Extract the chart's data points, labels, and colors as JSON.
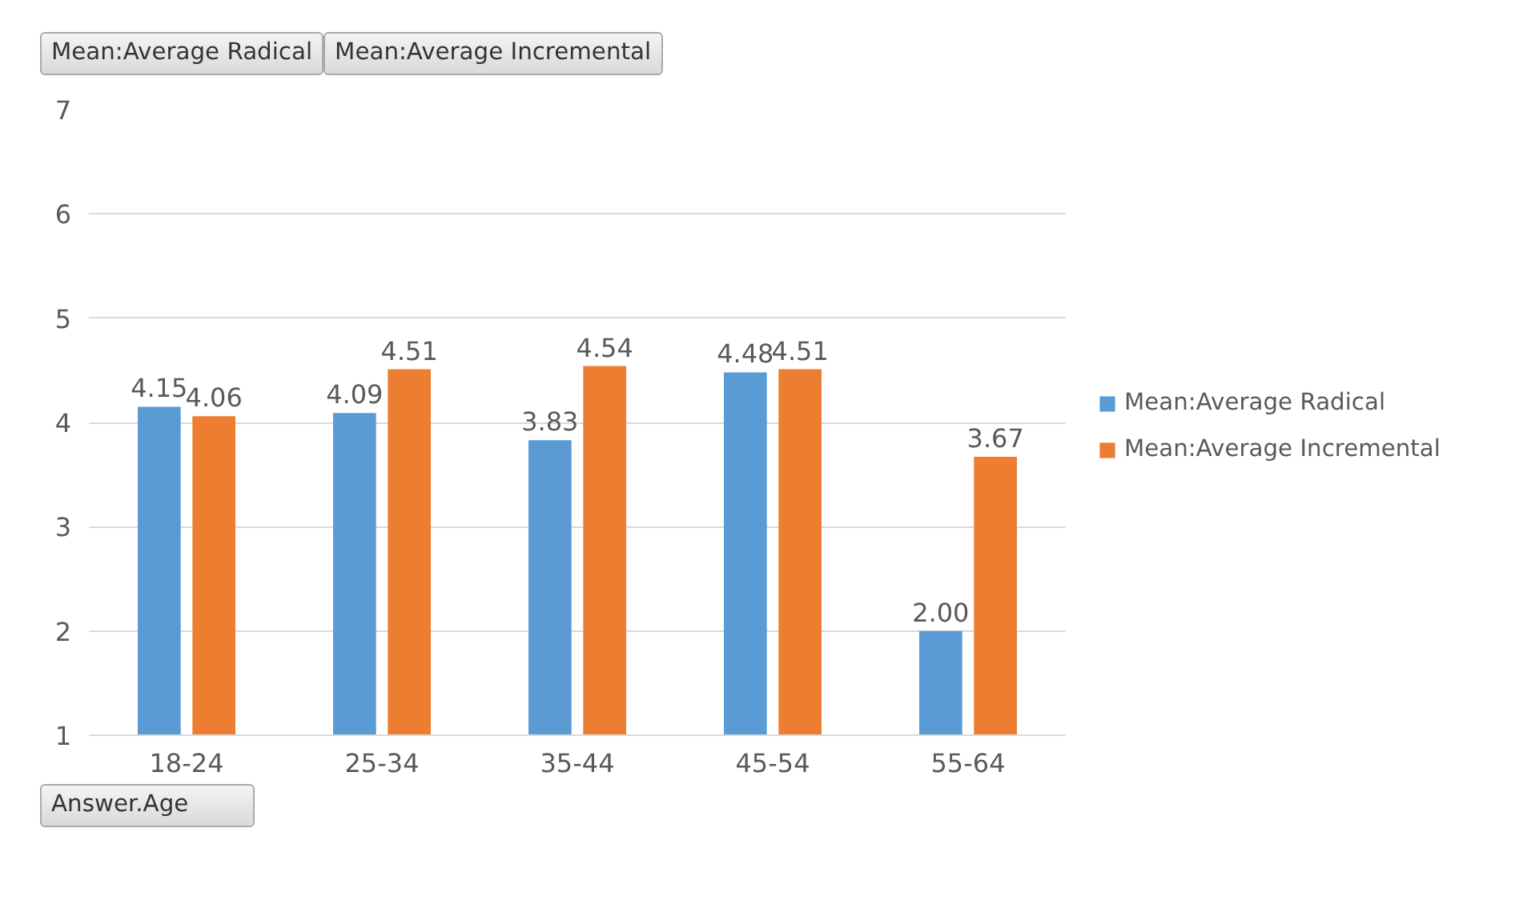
{
  "chart_data": {
    "type": "bar",
    "categories": [
      "18-24",
      "25-34",
      "35-44",
      "45-54",
      "55-64"
    ],
    "series": [
      {
        "name": "Mean:Average Radical",
        "color": "#5b9bd5",
        "values": [
          4.15,
          4.09,
          3.83,
          4.48,
          2.0
        ],
        "value_labels": [
          "4.15",
          "4.09",
          "3.83",
          "4.48",
          "2.00"
        ]
      },
      {
        "name": "Mean:Average Incremental",
        "color": "#ed7d31",
        "values": [
          4.06,
          4.51,
          4.54,
          4.51,
          3.67
        ],
        "value_labels": [
          "4.06",
          "4.51",
          "4.54",
          "4.51",
          "3.67"
        ]
      }
    ],
    "ylim": [
      1,
      7
    ],
    "yticks": [
      1,
      2,
      3,
      4,
      5,
      6,
      7
    ],
    "grid": "y",
    "legend": "right",
    "annotations": [
      "Mean:Average Radical",
      "Mean:Average Incremental",
      "Answer.Age"
    ]
  }
}
